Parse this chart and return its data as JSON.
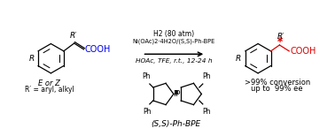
{
  "bg_color": "#ffffff",
  "text_color": "#000000",
  "blue": "#0000ee",
  "red": "#dd0000",
  "black": "#000000",
  "reaction_line1": "H2 (80 atm)",
  "reaction_line2": "Ni(OAc)2·4H2O/(S,S)-Ph-BPE",
  "reaction_line3": "HOAc, TFE, r.t., 12-24 h",
  "label_EZ": "E or Z",
  "label_Rprime": "R′ = aryl, alkyl",
  "label_catalyst": "(S,S)-Ph-BPE",
  "label_conversion": ">99% conversion",
  "label_ee": "up to  99% ee",
  "fig_width": 3.78,
  "fig_height": 1.54,
  "dpi": 100
}
